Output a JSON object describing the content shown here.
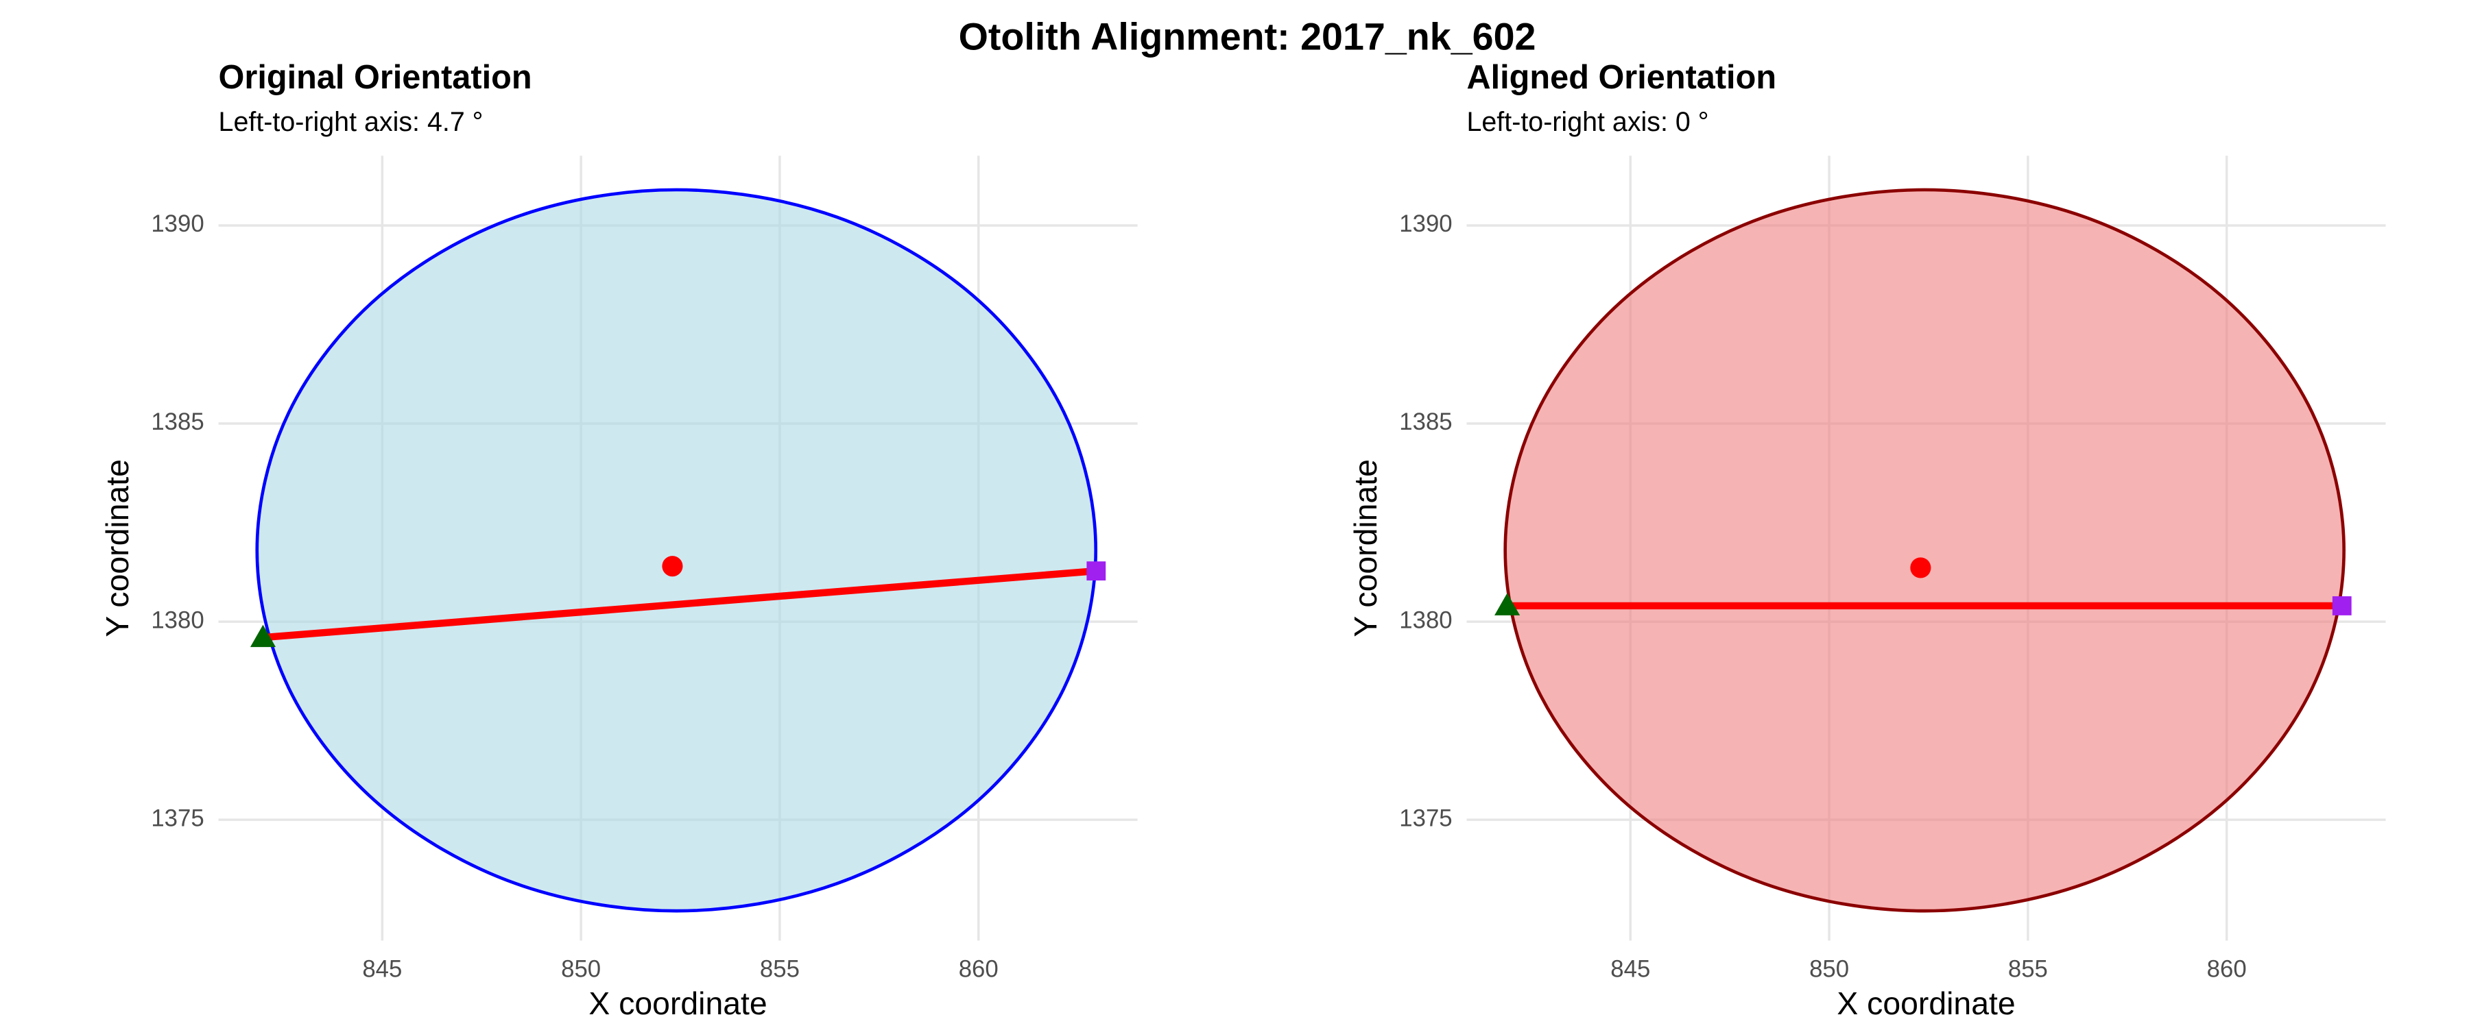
{
  "title": "Otolith Alignment: 2017_nk_602",
  "chart_data": [
    {
      "type": "scatter",
      "title": "Original Orientation",
      "subtitle": "Left-to-right axis: 4.7 °",
      "x_label": "X coordinate",
      "y_label": "Y coordinate",
      "xlim": [
        840.88,
        864
      ],
      "ylim": [
        1371.95,
        1391.76
      ],
      "xticks": [
        845,
        850,
        855,
        860
      ],
      "yticks": [
        1375,
        1380,
        1385,
        1390
      ],
      "grid": true,
      "outline": {
        "fill": "#add8e6",
        "stroke": "#0000ff",
        "x": [
          862.95,
          862.15,
          859.86,
          856.44,
          852.4,
          848.36,
          844.94,
          842.65,
          841.85,
          842.65,
          844.94,
          848.36,
          852.4,
          856.44,
          859.86,
          862.15
        ],
        "y": [
          1381.8,
          1385.28,
          1388.23,
          1390.21,
          1390.9,
          1390.21,
          1388.23,
          1385.28,
          1381.8,
          1378.32,
          1375.37,
          1373.39,
          1372.7,
          1373.39,
          1375.37,
          1378.32
        ]
      },
      "axis_line": {
        "color": "#ff0000",
        "x": [
          842.0,
          862.96
        ],
        "y": [
          1379.6,
          1381.28
        ]
      },
      "centroid": {
        "color": "#ff0000",
        "x": 852.3,
        "y": 1381.4
      },
      "start": {
        "color": "#006400",
        "x": 842.0,
        "y": 1379.6
      },
      "end": {
        "color": "#a020f0",
        "x": 862.96,
        "y": 1381.28
      }
    },
    {
      "type": "scatter",
      "title": "Aligned Orientation",
      "subtitle": "Left-to-right axis: 0 °",
      "x_label": "X coordinate",
      "y_label": "Y coordinate",
      "xlim": [
        840.88,
        864
      ],
      "ylim": [
        1371.95,
        1391.76
      ],
      "xticks": [
        845,
        850,
        855,
        860
      ],
      "yticks": [
        1375,
        1380,
        1385,
        1390
      ],
      "grid": true,
      "outline": {
        "fill": "#f08080",
        "stroke": "#8b0000",
        "x": [
          862.95,
          862.15,
          859.86,
          856.44,
          852.4,
          848.36,
          844.94,
          842.65,
          841.85,
          842.65,
          844.94,
          848.36,
          852.4,
          856.44,
          859.86,
          862.15
        ],
        "y": [
          1381.8,
          1385.28,
          1388.23,
          1390.21,
          1390.9,
          1390.21,
          1388.23,
          1385.28,
          1381.8,
          1378.32,
          1375.37,
          1373.39,
          1372.7,
          1373.39,
          1375.37,
          1378.32
        ]
      },
      "axis_line": {
        "color": "#ff0000",
        "x": [
          841.9,
          862.9
        ],
        "y": [
          1380.4,
          1380.4
        ]
      },
      "centroid": {
        "color": "#ff0000",
        "x": 852.3,
        "y": 1381.36
      },
      "start": {
        "color": "#006400",
        "x": 841.9,
        "y": 1380.4
      },
      "end": {
        "color": "#a020f0",
        "x": 862.9,
        "y": 1380.4
      }
    }
  ]
}
